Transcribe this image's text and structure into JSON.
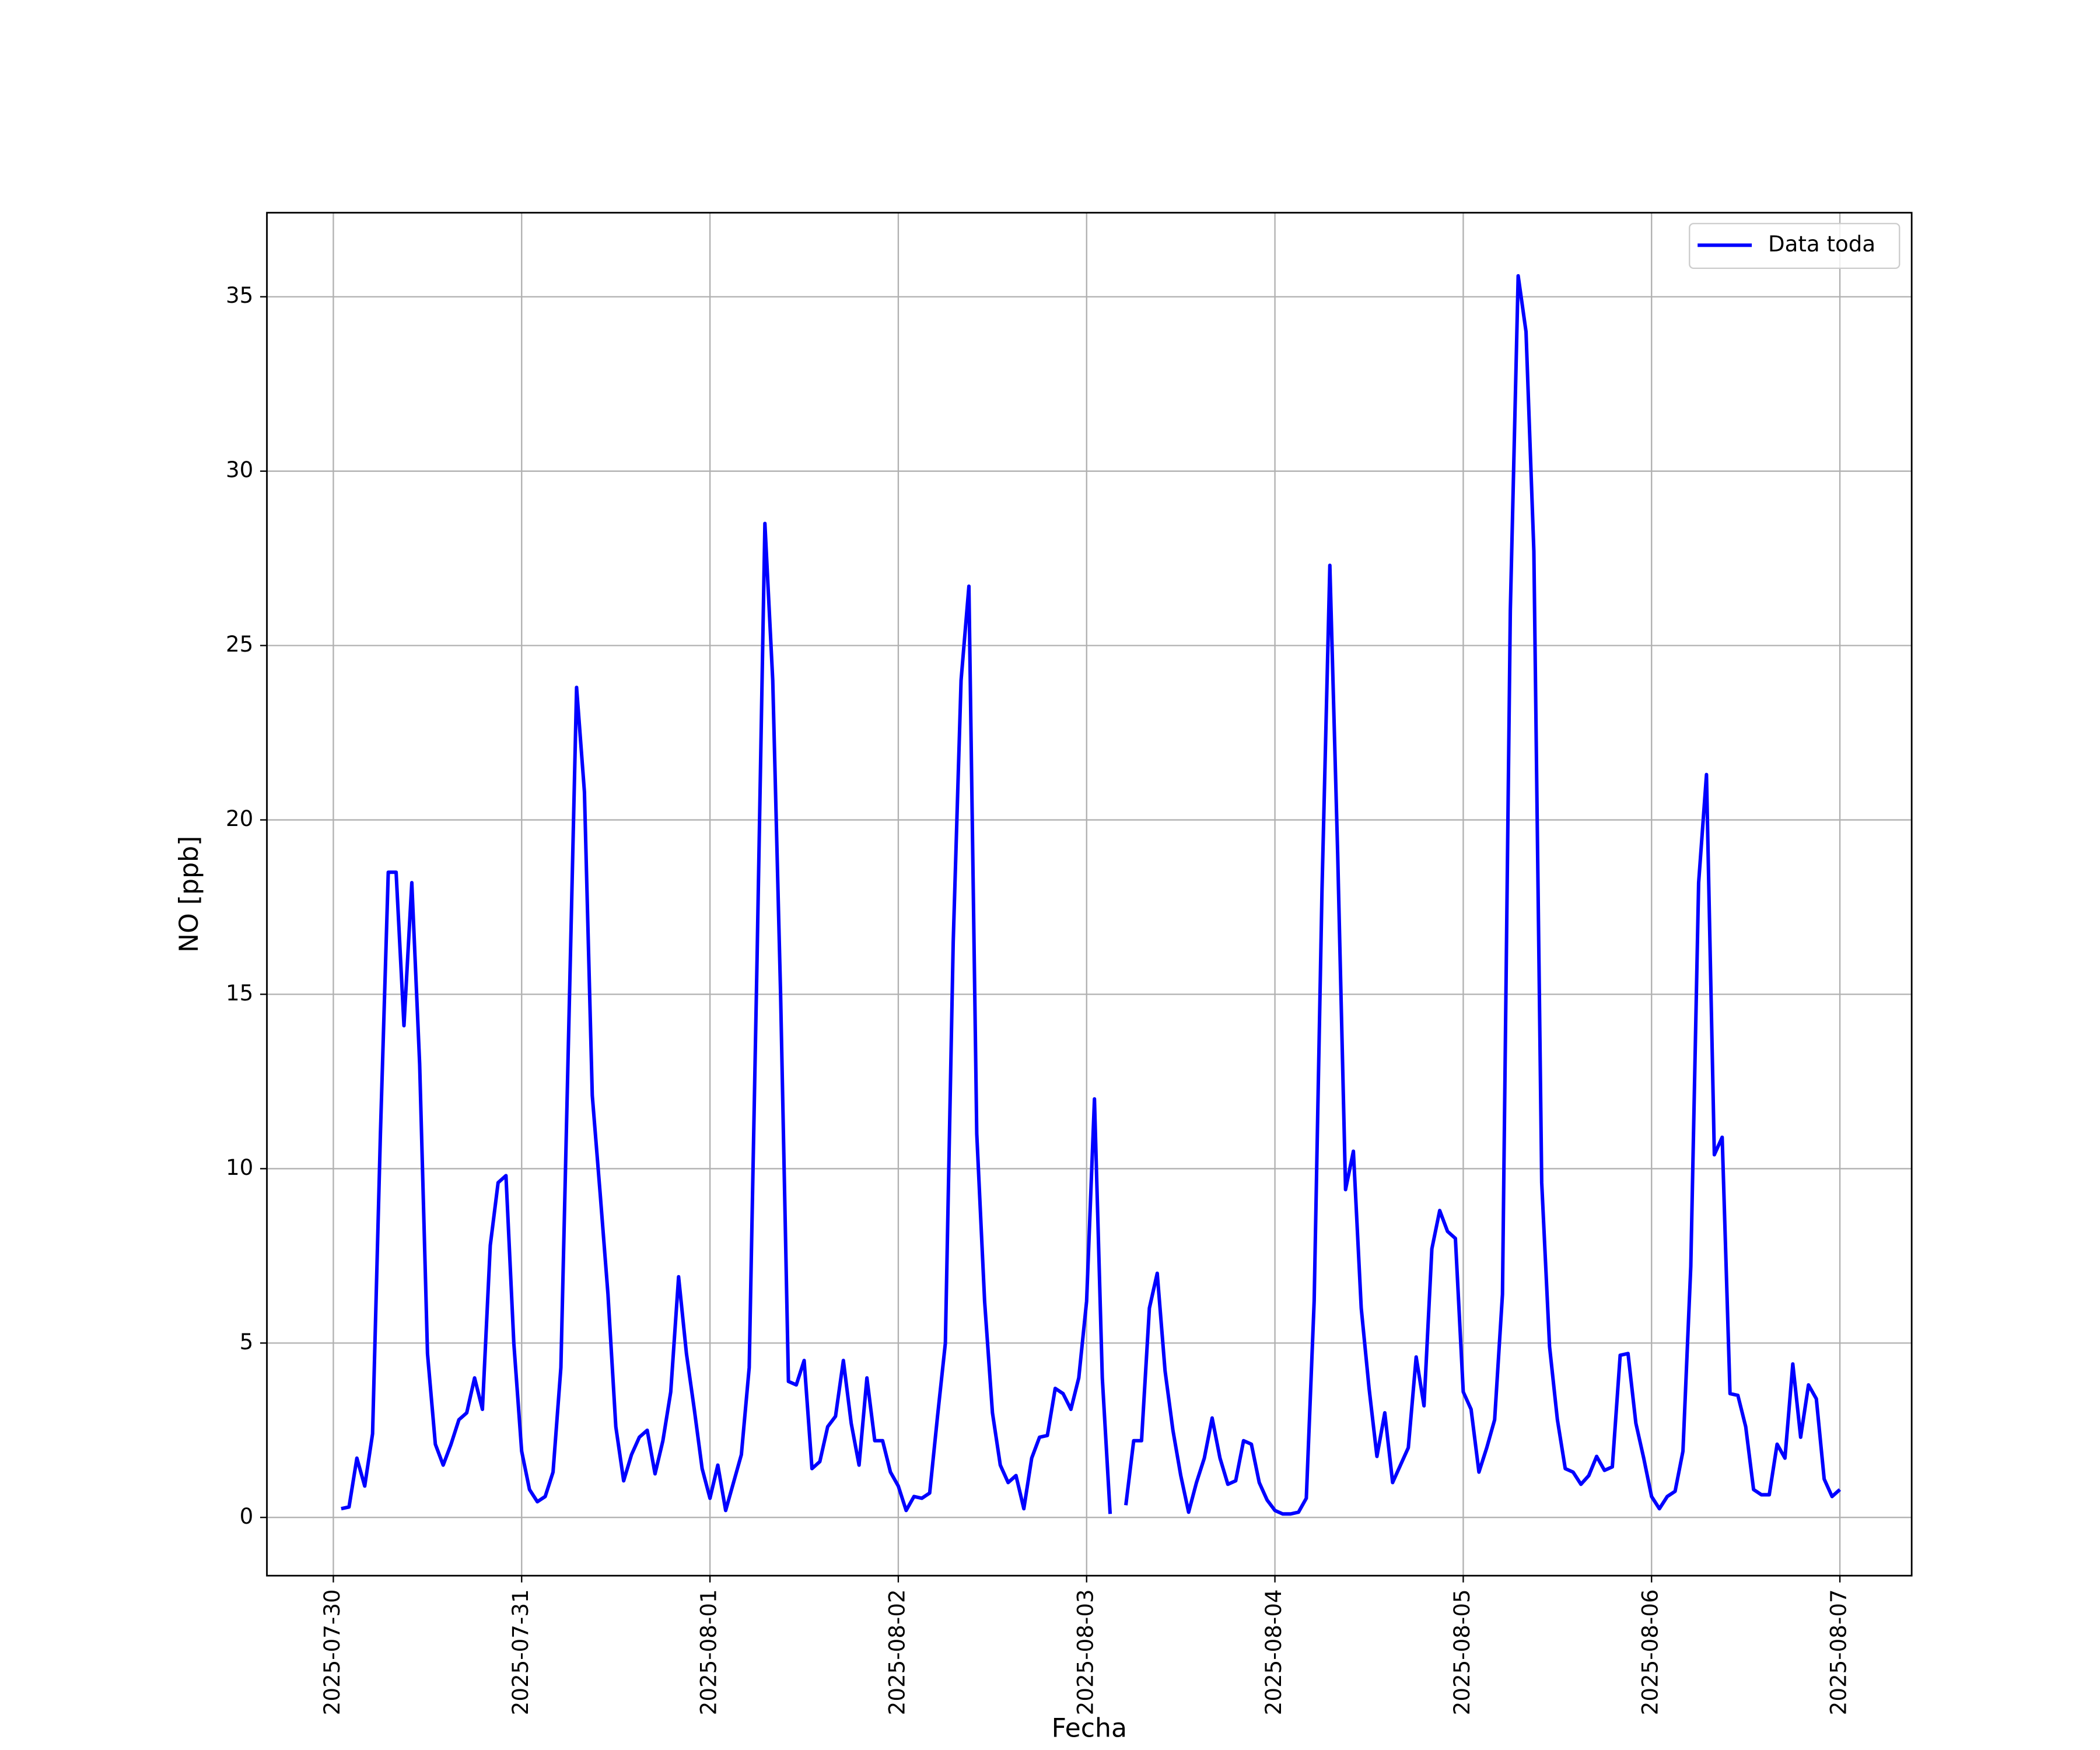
{
  "chart_data": {
    "type": "line",
    "xlabel": "Fecha",
    "ylabel": "NO [ppb]",
    "x": [
      "2025-07-30 01:00",
      "2025-07-30 02:00",
      "2025-07-30 03:00",
      "2025-07-30 04:00",
      "2025-07-30 05:00",
      "2025-07-30 06:00",
      "2025-07-30 07:00",
      "2025-07-30 08:00",
      "2025-07-30 09:00",
      "2025-07-30 10:00",
      "2025-07-30 11:00",
      "2025-07-30 12:00",
      "2025-07-30 13:00",
      "2025-07-30 14:00",
      "2025-07-30 15:00",
      "2025-07-30 16:00",
      "2025-07-30 17:00",
      "2025-07-30 18:00",
      "2025-07-30 19:00",
      "2025-07-30 20:00",
      "2025-07-30 21:00",
      "2025-07-30 22:00",
      "2025-07-30 23:00",
      "2025-07-31 00:00",
      "2025-07-31 01:00",
      "2025-07-31 02:00",
      "2025-07-31 03:00",
      "2025-07-31 04:00",
      "2025-07-31 05:00",
      "2025-07-31 06:00",
      "2025-07-31 07:00",
      "2025-07-31 08:00",
      "2025-07-31 09:00",
      "2025-07-31 10:00",
      "2025-07-31 11:00",
      "2025-07-31 12:00",
      "2025-07-31 13:00",
      "2025-07-31 14:00",
      "2025-07-31 15:00",
      "2025-07-31 16:00",
      "2025-07-31 17:00",
      "2025-07-31 18:00",
      "2025-07-31 19:00",
      "2025-07-31 20:00",
      "2025-07-31 21:00",
      "2025-07-31 22:00",
      "2025-07-31 23:00",
      "2025-08-01 00:00",
      "2025-08-01 01:00",
      "2025-08-01 02:00",
      "2025-08-01 03:00",
      "2025-08-01 04:00",
      "2025-08-01 05:00",
      "2025-08-01 06:00",
      "2025-08-01 07:00",
      "2025-08-01 08:00",
      "2025-08-01 09:00",
      "2025-08-01 10:00",
      "2025-08-01 11:00",
      "2025-08-01 12:00",
      "2025-08-01 13:00",
      "2025-08-01 14:00",
      "2025-08-01 15:00",
      "2025-08-01 16:00",
      "2025-08-01 17:00",
      "2025-08-01 18:00",
      "2025-08-01 19:00",
      "2025-08-01 20:00",
      "2025-08-01 21:00",
      "2025-08-01 22:00",
      "2025-08-01 23:00",
      "2025-08-02 00:00",
      "2025-08-02 01:00",
      "2025-08-02 02:00",
      "2025-08-02 03:00",
      "2025-08-02 04:00",
      "2025-08-02 05:00",
      "2025-08-02 06:00",
      "2025-08-02 07:00",
      "2025-08-02 08:00",
      "2025-08-02 09:00",
      "2025-08-02 10:00",
      "2025-08-02 11:00",
      "2025-08-02 12:00",
      "2025-08-02 13:00",
      "2025-08-02 14:00",
      "2025-08-02 15:00",
      "2025-08-02 16:00",
      "2025-08-02 17:00",
      "2025-08-02 18:00",
      "2025-08-02 19:00",
      "2025-08-02 20:00",
      "2025-08-02 21:00",
      "2025-08-02 22:00",
      "2025-08-02 23:00",
      "2025-08-03 00:00",
      "2025-08-03 01:00",
      "2025-08-03 02:00",
      "2025-08-03 03:00",
      "2025-08-03 04:00",
      "2025-08-03 05:00",
      "2025-08-03 06:00",
      "2025-08-03 07:00",
      "2025-08-03 08:00",
      "2025-08-03 09:00",
      "2025-08-03 10:00",
      "2025-08-03 11:00",
      "2025-08-03 12:00",
      "2025-08-03 13:00",
      "2025-08-03 14:00",
      "2025-08-03 15:00",
      "2025-08-03 16:00",
      "2025-08-03 17:00",
      "2025-08-03 18:00",
      "2025-08-03 19:00",
      "2025-08-03 20:00",
      "2025-08-03 21:00",
      "2025-08-03 22:00",
      "2025-08-03 23:00",
      "2025-08-04 00:00",
      "2025-08-04 01:00",
      "2025-08-04 02:00",
      "2025-08-04 03:00",
      "2025-08-04 04:00",
      "2025-08-04 05:00",
      "2025-08-04 06:00",
      "2025-08-04 07:00",
      "2025-08-04 08:00",
      "2025-08-04 09:00",
      "2025-08-04 10:00",
      "2025-08-04 11:00",
      "2025-08-04 12:00",
      "2025-08-04 13:00",
      "2025-08-04 14:00",
      "2025-08-04 15:00",
      "2025-08-04 16:00",
      "2025-08-04 17:00",
      "2025-08-04 18:00",
      "2025-08-04 19:00",
      "2025-08-04 20:00",
      "2025-08-04 21:00",
      "2025-08-04 22:00",
      "2025-08-04 23:00",
      "2025-08-05 00:00",
      "2025-08-05 01:00",
      "2025-08-05 02:00",
      "2025-08-05 03:00",
      "2025-08-05 04:00",
      "2025-08-05 05:00",
      "2025-08-05 06:00",
      "2025-08-05 07:00",
      "2025-08-05 08:00",
      "2025-08-05 09:00",
      "2025-08-05 10:00",
      "2025-08-05 11:00",
      "2025-08-05 12:00",
      "2025-08-05 13:00",
      "2025-08-05 14:00",
      "2025-08-05 15:00",
      "2025-08-05 16:00",
      "2025-08-05 17:00",
      "2025-08-05 18:00",
      "2025-08-05 19:00",
      "2025-08-05 20:00",
      "2025-08-05 21:00",
      "2025-08-05 22:00",
      "2025-08-05 23:00",
      "2025-08-06 00:00",
      "2025-08-06 01:00",
      "2025-08-06 02:00",
      "2025-08-06 03:00",
      "2025-08-06 04:00",
      "2025-08-06 05:00",
      "2025-08-06 06:00",
      "2025-08-06 07:00",
      "2025-08-06 08:00",
      "2025-08-06 09:00",
      "2025-08-06 10:00",
      "2025-08-06 11:00",
      "2025-08-06 12:00",
      "2025-08-06 13:00",
      "2025-08-06 14:00",
      "2025-08-06 15:00",
      "2025-08-06 16:00",
      "2025-08-06 17:00",
      "2025-08-06 18:00",
      "2025-08-06 19:00",
      "2025-08-06 20:00",
      "2025-08-06 21:00",
      "2025-08-06 22:00",
      "2025-08-06 23:00",
      "2025-08-07 00:00"
    ],
    "series": [
      {
        "name": "Data toda",
        "color": "#0000ff",
        "values": [
          0.25,
          0.3,
          1.7,
          0.9,
          2.4,
          11,
          18.5,
          18.5,
          14.1,
          18.2,
          13,
          4.7,
          2.1,
          1.5,
          2.1,
          2.8,
          3.0,
          4.0,
          3.1,
          7.8,
          9.6,
          9.8,
          5.0,
          1.9,
          0.8,
          0.45,
          0.6,
          1.3,
          4.3,
          14,
          23.8,
          20.8,
          12.1,
          9.3,
          6.4,
          2.6,
          1.05,
          1.8,
          2.3,
          2.5,
          1.25,
          2.2,
          3.6,
          6.9,
          4.7,
          3.1,
          1.4,
          0.55,
          1.5,
          0.2,
          1.0,
          1.8,
          4.3,
          16,
          28.5,
          24,
          15,
          3.9,
          3.8,
          4.5,
          1.4,
          1.6,
          2.6,
          2.9,
          4.5,
          2.7,
          1.5,
          4.0,
          2.2,
          2.2,
          1.3,
          0.9,
          0.2,
          0.6,
          0.55,
          0.7,
          2.9,
          5.0,
          16.5,
          24,
          26.7,
          11,
          6.2,
          3.0,
          1.5,
          1.0,
          1.2,
          0.25,
          1.7,
          2.3,
          2.35,
          3.7,
          3.55,
          3.1,
          4.0,
          6.2,
          12,
          4.0,
          0.1,
          null,
          0.35,
          2.2,
          2.2,
          6.0,
          7.0,
          4.2,
          2.5,
          1.2,
          0.15,
          1.0,
          1.7,
          2.85,
          1.7,
          0.95,
          1.05,
          2.2,
          2.1,
          1.0,
          0.5,
          0.2,
          0.1,
          0.1,
          0.15,
          0.55,
          6.2,
          18,
          27.3,
          19,
          9.4,
          10.5,
          6.0,
          3.7,
          1.75,
          3.0,
          1.0,
          1.5,
          2.0,
          4.6,
          3.2,
          7.7,
          8.8,
          8.2,
          8.0,
          3.6,
          3.1,
          1.3,
          2.0,
          2.8,
          6.4,
          26,
          35.6,
          34,
          27.7,
          9.6,
          4.9,
          2.8,
          1.4,
          1.3,
          0.95,
          1.2,
          1.75,
          1.35,
          1.45,
          4.65,
          4.7,
          2.7,
          1.7,
          0.6,
          0.25,
          0.6,
          0.75,
          1.9,
          7.2,
          18.2,
          21.3,
          10.4,
          10.9,
          3.55,
          3.5,
          2.6,
          0.8,
          0.65,
          0.65,
          2.1,
          1.7,
          4.4,
          2.3,
          3.8,
          3.4,
          1.1,
          0.6,
          0.8
        ]
      }
    ],
    "xlim": [
      "2025-07-29 15:32",
      "2025-08-07 09:09"
    ],
    "xticks": [
      "2025-07-30",
      "2025-07-31",
      "2025-08-01",
      "2025-08-02",
      "2025-08-03",
      "2025-08-04",
      "2025-08-05",
      "2025-08-06",
      "2025-08-07"
    ],
    "ylim": [
      -1.67,
      37.41
    ],
    "yticks": [
      0,
      5,
      10,
      15,
      20,
      25,
      30,
      35
    ],
    "grid": true,
    "legend": "upper right"
  }
}
